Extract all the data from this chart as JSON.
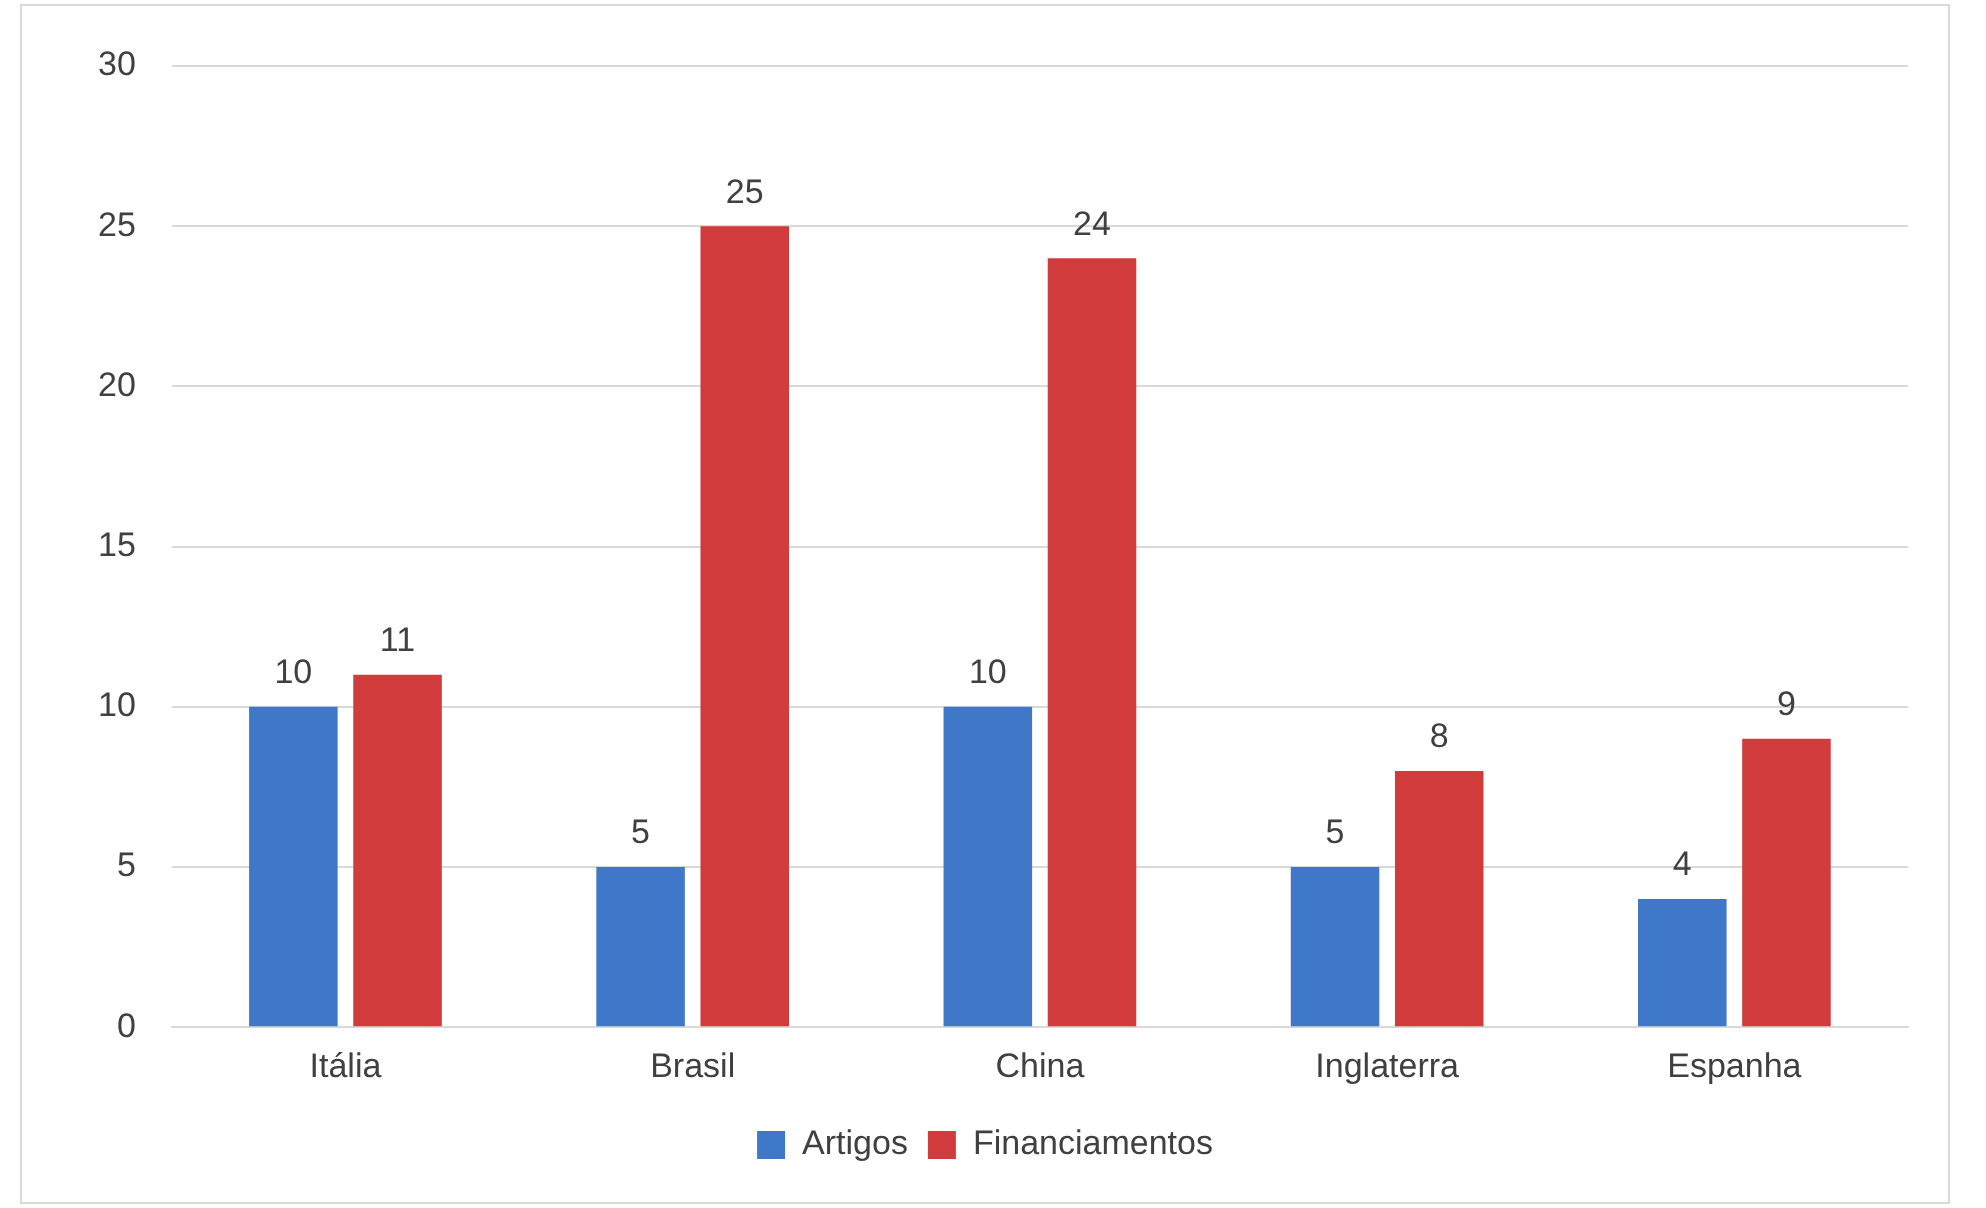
{
  "chart_data": {
    "type": "bar",
    "categories": [
      "Itália",
      "Brasil",
      "China",
      "Inglaterra",
      "Espanha"
    ],
    "series": [
      {
        "name": "Artigos",
        "color": "#3f78c8",
        "values": [
          10,
          5,
          10,
          5,
          4
        ]
      },
      {
        "name": "Financiamentos",
        "color": "#d23b3b",
        "values": [
          11,
          25,
          24,
          8,
          9
        ]
      }
    ],
    "ylim": [
      0,
      30
    ],
    "yticks": [
      0,
      5,
      10,
      15,
      20,
      25,
      30
    ],
    "grid": "y",
    "legend": "bottom",
    "data_labels": true
  }
}
